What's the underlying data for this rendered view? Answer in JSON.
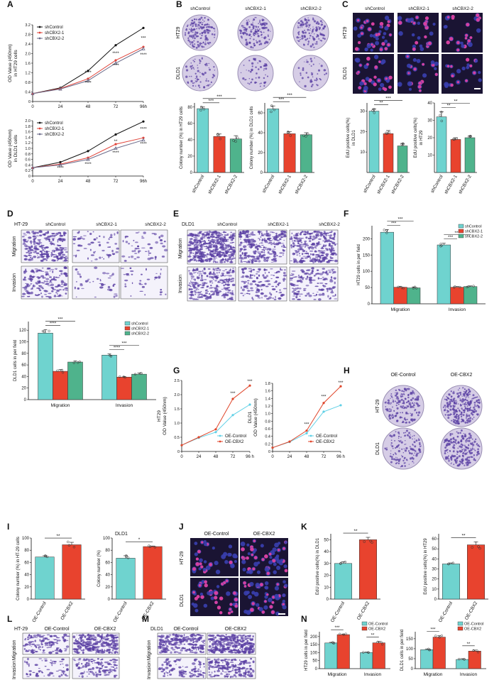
{
  "colors": {
    "control": "#6fd3cf",
    "kd1": "#e8432e",
    "kd2": "#4fb38c",
    "oe_control": "#6fd3cf",
    "oe_cbx2": "#e8432e",
    "bar_edge": "#333333",
    "dish": "#d6cde6",
    "stain": "#5a3fa3",
    "edu_bg": "#1a1433",
    "edu_cell": "#d6409f"
  },
  "panels": {
    "A": {
      "letter": "A"
    },
    "B": {
      "letter": "B",
      "col_headers": [
        "shControl",
        "shCBX2-1",
        "shCBX2-2"
      ],
      "row_labels": [
        "HT29",
        "DLD1"
      ]
    },
    "C": {
      "letter": "C",
      "col_headers": [
        "shControl",
        "shCBX2-1",
        "shCBX2-2"
      ],
      "row_labels": [
        "HT29",
        "DLD1"
      ]
    },
    "D": {
      "letter": "D",
      "cell_line": "HT-29",
      "col_headers": [
        "shControl",
        "shCBX2-1",
        "shCBX2-2"
      ],
      "row_labels": [
        "Migration",
        "Invasion"
      ]
    },
    "E": {
      "letter": "E",
      "cell_line": "DLD1",
      "col_headers": [
        "shControl",
        "shCBX2-1",
        "shCBX2-2"
      ],
      "row_labels": [
        "Migration",
        "Invasion"
      ]
    },
    "F": {
      "letter": "F"
    },
    "G": {
      "letter": "G"
    },
    "H": {
      "letter": "H",
      "col_headers": [
        "OE-Control",
        "OE-CBX2"
      ],
      "row_labels": [
        "HT-29",
        "DLD1"
      ]
    },
    "I": {
      "letter": "I"
    },
    "J": {
      "letter": "J",
      "col_headers": [
        "OE-Control",
        "OE-CBX2"
      ],
      "row_labels": [
        "HT-29",
        "DLD1"
      ]
    },
    "K": {
      "letter": "K"
    },
    "L": {
      "letter": "L",
      "cell_line": "HT-29",
      "col_headers": [
        "OE-Control",
        "OE-CBX2"
      ],
      "row_labels": [
        "Migration",
        "Invasion"
      ]
    },
    "M": {
      "letter": "M",
      "cell_line": "DLD1",
      "col_headers": [
        "OE-Control",
        "OE-CBX2"
      ],
      "row_labels": [
        "Migration",
        "Invasion"
      ]
    },
    "N": {
      "letter": "N"
    }
  },
  "chart_data": [
    {
      "id": "A1",
      "type": "line",
      "ylabel": "OD Value (450nm)\nin HT29 cells",
      "x": [
        0,
        24,
        48,
        72,
        96
      ],
      "xtick_labels": [
        "0",
        "24",
        "48",
        "72",
        "96h"
      ],
      "ylim": [
        0,
        3.2
      ],
      "yticks": [
        0,
        0.4,
        0.8,
        1.2,
        1.6,
        2.0,
        2.4,
        2.8,
        3.2
      ],
      "ytick_labels": [
        "0",
        "0.4",
        "0.8",
        "1.2",
        "1.6",
        "2.0",
        "2.4",
        "2.8",
        "3.2"
      ],
      "legend": "top-left",
      "series": [
        {
          "name": "shControl",
          "values": [
            0.33,
            0.57,
            1.28,
            2.35,
            3.07
          ]
        },
        {
          "name": "shCBX2-1",
          "values": [
            0.33,
            0.54,
            0.95,
            1.72,
            2.28
          ]
        },
        {
          "name": "shCBX2-2",
          "values": [
            0.33,
            0.52,
            0.87,
            1.6,
            2.2
          ]
        }
      ],
      "annotations": [
        {
          "x": 48,
          "y": 1.15,
          "text": "****"
        },
        {
          "x": 48,
          "y": 0.72,
          "text": "****"
        },
        {
          "x": 72,
          "y": 1.95,
          "text": "****"
        },
        {
          "x": 72,
          "y": 1.45,
          "text": "****"
        },
        {
          "x": 96,
          "y": 2.6,
          "text": "***"
        },
        {
          "x": 96,
          "y": 1.9,
          "text": "****"
        }
      ]
    },
    {
      "id": "A2",
      "type": "line",
      "ylabel": "OD Value (450nm)\nin DLD1 cells",
      "x": [
        0,
        24,
        48,
        72,
        96
      ],
      "xtick_labels": [
        "0",
        "24",
        "48",
        "72",
        "96h"
      ],
      "ylim": [
        0,
        2.0
      ],
      "yticks": [
        0,
        0.2,
        0.4,
        0.6,
        0.8,
        1.0,
        1.2,
        1.4,
        1.6,
        1.8,
        2.0
      ],
      "ytick_labels": [
        "0",
        "0.2",
        "0.4",
        "0.6",
        "0.8",
        "1.0",
        "1.2",
        "1.4",
        "1.6",
        "1.8",
        "2.0"
      ],
      "legend": "top-left",
      "series": [
        {
          "name": "shControl",
          "values": [
            0.3,
            0.5,
            0.9,
            1.5,
            1.97
          ]
        },
        {
          "name": "shCBX2-1",
          "values": [
            0.3,
            0.43,
            0.66,
            1.15,
            1.38
          ]
        },
        {
          "name": "shCBX2-2",
          "values": [
            0.3,
            0.4,
            0.6,
            1.0,
            1.3
          ]
        }
      ],
      "annotations": [
        {
          "x": 24,
          "y": 0.24,
          "text": "****"
        },
        {
          "x": 48,
          "y": 0.38,
          "text": "****"
        },
        {
          "x": 72,
          "y": 1.2,
          "text": "**"
        },
        {
          "x": 72,
          "y": 0.8,
          "text": "****"
        },
        {
          "x": 96,
          "y": 1.65,
          "text": "****"
        },
        {
          "x": 96,
          "y": 1.12,
          "text": "****"
        }
      ]
    },
    {
      "id": "B1",
      "type": "bar",
      "ylabel": "Colony number (%) in HT29 cells",
      "categories": [
        "shControl",
        "shCBX2-1",
        "shCBX2-2"
      ],
      "values": [
        78,
        44,
        41
      ],
      "errors": [
        2,
        3,
        4
      ],
      "ylim": [
        0,
        85
      ],
      "yticks": [
        0,
        20,
        40,
        60,
        80
      ],
      "ytick_labels": [
        "0",
        "20",
        "40",
        "60",
        "80"
      ],
      "colors": [
        "#6fd3cf",
        "#e8432e",
        "#4fb38c"
      ],
      "significance": [
        {
          "from": 0,
          "to": 1,
          "text": "***"
        },
        {
          "from": 0,
          "to": 2,
          "text": "***"
        }
      ]
    },
    {
      "id": "B2",
      "type": "bar",
      "ylabel": "Colony number (%) in DLD1 cells",
      "categories": [
        "shControl",
        "shCBX2-1",
        "shCBX2-2"
      ],
      "values": [
        64,
        39,
        38
      ],
      "errors": [
        3,
        2,
        2
      ],
      "ylim": [
        0,
        70
      ],
      "yticks": [
        0,
        20,
        40,
        60
      ],
      "ytick_labels": [
        "0",
        "20",
        "40",
        "60"
      ],
      "colors": [
        "#6fd3cf",
        "#e8432e",
        "#4fb38c"
      ],
      "significance": [
        {
          "from": 0,
          "to": 1,
          "text": "***"
        },
        {
          "from": 0,
          "to": 2,
          "text": "***"
        }
      ]
    },
    {
      "id": "C1",
      "type": "bar",
      "ylabel": "EdU positive cells(%)\nin DLD1",
      "categories": [
        "shControl",
        "shCBX2-1",
        "shCBX2-2"
      ],
      "values": [
        30,
        19,
        13
      ],
      "errors": [
        1,
        1.5,
        1.2
      ],
      "ylim": [
        0,
        34
      ],
      "yticks": [
        10,
        20,
        30
      ],
      "ytick_labels": [
        "10",
        "20",
        "30"
      ],
      "colors": [
        "#6fd3cf",
        "#e8432e",
        "#4fb38c"
      ],
      "significance": [
        {
          "from": 0,
          "to": 1,
          "text": "**"
        },
        {
          "from": 0,
          "to": 2,
          "text": "***"
        }
      ]
    },
    {
      "id": "C2",
      "type": "bar",
      "ylabel": "EdU positive cells(%)\nin HT29",
      "categories": [
        "shControl",
        "shCBX2-1",
        "shCBX2-2"
      ],
      "values": [
        32,
        19,
        20
      ],
      "errors": [
        3,
        1,
        1
      ],
      "ylim": [
        0,
        40
      ],
      "yticks": [
        10,
        20,
        30,
        40
      ],
      "ytick_labels": [
        "10",
        "20",
        "30",
        "40"
      ],
      "colors": [
        "#6fd3cf",
        "#e8432e",
        "#4fb38c"
      ],
      "significance": [
        {
          "from": 0,
          "to": 1,
          "text": "**"
        },
        {
          "from": 0,
          "to": 2,
          "text": "**"
        }
      ]
    },
    {
      "id": "F",
      "type": "bar",
      "ylabel": "HT29 cells in per field",
      "categories": [
        "Migration",
        "Invasion"
      ],
      "ylim": [
        0,
        240
      ],
      "yticks": [
        0,
        50,
        100,
        150,
        200
      ],
      "ytick_labels": [
        "0",
        "50",
        "100",
        "150",
        "200"
      ],
      "legend": "top-right",
      "series": [
        {
          "name": "shControl",
          "values": [
            220,
            181
          ],
          "errors": [
            8,
            5
          ]
        },
        {
          "name": "shCBX2-1",
          "values": [
            51,
            51
          ],
          "errors": [
            3,
            2
          ]
        },
        {
          "name": "shCBX2-2",
          "values": [
            49,
            53
          ],
          "errors": [
            3,
            2
          ]
        }
      ],
      "significance": [
        {
          "group": 0,
          "from": 0,
          "to": 1,
          "text": "***"
        },
        {
          "group": 0,
          "from": 0,
          "to": 2,
          "text": "***"
        },
        {
          "group": 1,
          "from": 0,
          "to": 1,
          "text": "***"
        },
        {
          "group": 1,
          "from": 0,
          "to": 2,
          "text": "***"
        }
      ]
    },
    {
      "id": "E2",
      "type": "bar",
      "ylabel": "DLD1 cells in per field",
      "categories": [
        "Migration",
        "Invasion"
      ],
      "ylim": [
        0,
        135
      ],
      "yticks": [
        0,
        20,
        40,
        60,
        80,
        100,
        120
      ],
      "ytick_labels": [
        "0",
        "20",
        "40",
        "60",
        "80",
        "100",
        "120"
      ],
      "legend": "top-right",
      "series": [
        {
          "name": "shControl",
          "values": [
            115,
            77
          ],
          "errors": [
            6,
            2
          ]
        },
        {
          "name": "shCBX2-1",
          "values": [
            49,
            39
          ],
          "errors": [
            3,
            1
          ]
        },
        {
          "name": "shCBX2-2",
          "values": [
            65,
            44
          ],
          "errors": [
            2,
            2
          ]
        }
      ],
      "significance": [
        {
          "group": 0,
          "from": 0,
          "to": 1,
          "text": "****"
        },
        {
          "group": 0,
          "from": 0,
          "to": 2,
          "text": "***"
        },
        {
          "group": 1,
          "from": 0,
          "to": 1,
          "text": "****"
        },
        {
          "group": 1,
          "from": 0,
          "to": 2,
          "text": "***"
        }
      ]
    },
    {
      "id": "G1",
      "type": "line",
      "ylabel": "HT29\nOD Value (450nm)",
      "x": [
        0,
        24,
        48,
        72,
        96
      ],
      "xtick_labels": [
        "0",
        "24",
        "48",
        "72",
        "96 h"
      ],
      "ylim": [
        0,
        2.5
      ],
      "yticks": [
        0,
        0.5,
        1.0,
        1.5,
        2.0,
        2.5
      ],
      "ytick_labels": [
        "0",
        "0.5",
        "1.0",
        "1.5",
        "2.0",
        "2.5"
      ],
      "legend": "bottom-right",
      "series": [
        {
          "name": "OE-Control",
          "values": [
            0.22,
            0.48,
            0.68,
            1.28,
            1.65
          ]
        },
        {
          "name": "OE-CBX2",
          "values": [
            0.22,
            0.5,
            0.78,
            1.85,
            2.32
          ]
        }
      ],
      "annotations": [
        {
          "x": 72,
          "y": 2.0,
          "text": "***"
        },
        {
          "x": 96,
          "y": 2.42,
          "text": "***"
        }
      ]
    },
    {
      "id": "G2",
      "type": "line",
      "ylabel": "DLD1\nOD Value (450nm)",
      "x": [
        0,
        24,
        48,
        72,
        96
      ],
      "xtick_labels": [
        "0",
        "24",
        "48",
        "72",
        "96 h"
      ],
      "ylim": [
        0,
        1.8
      ],
      "yticks": [
        0,
        0.2,
        0.4,
        0.6,
        0.8,
        1.0,
        1.2,
        1.4,
        1.6,
        1.8
      ],
      "ytick_labels": [
        "0",
        "0.2",
        "0.4",
        "0.6",
        "0.8",
        "1.0",
        "1.2",
        "1.4",
        "1.6",
        "1.8"
      ],
      "legend": "right",
      "series": [
        {
          "name": "OE-Control",
          "values": [
            0.1,
            0.25,
            0.48,
            1.05,
            1.22
          ]
        },
        {
          "name": "OE-CBX2",
          "values": [
            0.1,
            0.26,
            0.55,
            1.28,
            1.72
          ]
        }
      ],
      "annotations": [
        {
          "x": 48,
          "y": 0.68,
          "text": "***"
        },
        {
          "x": 72,
          "y": 1.42,
          "text": "***"
        },
        {
          "x": 96,
          "y": 1.78,
          "text": "***"
        }
      ]
    },
    {
      "id": "I1",
      "type": "bar",
      "ylabel": "Colony number (%) in HT-29 cells",
      "categories": [
        "OE-Control",
        "OE-CBX2"
      ],
      "values": [
        69,
        89
      ],
      "errors": [
        2,
        4
      ],
      "ylim": [
        0,
        100
      ],
      "yticks": [
        0,
        20,
        40,
        60,
        80,
        100
      ],
      "ytick_labels": [
        "0",
        "20",
        "40",
        "60",
        "80",
        "100"
      ],
      "colors": [
        "#6fd3cf",
        "#e8432e"
      ],
      "significance": [
        {
          "from": 0,
          "to": 1,
          "text": "**"
        }
      ]
    },
    {
      "id": "I2",
      "type": "bar",
      "title": "DLD1",
      "ylabel": "Colony number (%)",
      "categories": [
        "OE-Control",
        "OE-CBX2"
      ],
      "values": [
        67,
        86
      ],
      "errors": [
        4,
        1
      ],
      "ylim": [
        0,
        100
      ],
      "yticks": [
        0,
        20,
        40,
        60,
        80,
        100
      ],
      "ytick_labels": [
        "0",
        "20",
        "40",
        "60",
        "80",
        "100"
      ],
      "colors": [
        "#6fd3cf",
        "#e8432e"
      ],
      "significance": [
        {
          "from": 0,
          "to": 1,
          "text": "*"
        }
      ]
    },
    {
      "id": "K1",
      "type": "bar",
      "ylabel": "EdU positive cells(%) in DLD1",
      "categories": [
        "OE-Control",
        "OE-CBX2"
      ],
      "values": [
        30,
        50
      ],
      "errors": [
        1.5,
        2
      ],
      "ylim": [
        0,
        55
      ],
      "yticks": [
        0,
        10,
        20,
        30,
        40,
        50
      ],
      "ytick_labels": [
        "0",
        "10",
        "20",
        "30",
        "40",
        "50"
      ],
      "colors": [
        "#6fd3cf",
        "#e8432e"
      ],
      "significance": [
        {
          "from": 0,
          "to": 1,
          "text": "**"
        }
      ]
    },
    {
      "id": "K2",
      "type": "bar",
      "ylabel": "EdU positive cells(%) in HT29",
      "categories": [
        "OE-Control",
        "OE-CBX2"
      ],
      "values": [
        35,
        54
      ],
      "errors": [
        1,
        3
      ],
      "ylim": [
        0,
        65
      ],
      "yticks": [
        0,
        10,
        20,
        30,
        40,
        50,
        60
      ],
      "ytick_labels": [
        "0",
        "10",
        "20",
        "30",
        "40",
        "50",
        "60"
      ],
      "colors": [
        "#6fd3cf",
        "#e8432e"
      ],
      "significance": [
        {
          "from": 0,
          "to": 1,
          "text": "**"
        }
      ]
    },
    {
      "id": "N1",
      "type": "bar",
      "ylabel": "HT29 cells in per field",
      "categories": [
        "Migration",
        "Invasion"
      ],
      "ylim": [
        0,
        230
      ],
      "yticks": [
        0,
        50,
        100,
        150,
        200
      ],
      "ytick_labels": [
        "0",
        "50",
        "100",
        "150",
        "200"
      ],
      "legend": "top-right",
      "series": [
        {
          "name": "OE-Control",
          "values": [
            160,
            100
          ],
          "errors": [
            4,
            3
          ]
        },
        {
          "name": "OE-CBX2",
          "values": [
            212,
            161
          ],
          "errors": [
            4,
            9
          ]
        }
      ],
      "significance": [
        {
          "group": 0,
          "from": 0,
          "to": 1,
          "text": "***"
        },
        {
          "group": 1,
          "from": 0,
          "to": 1,
          "text": "**"
        }
      ]
    },
    {
      "id": "N2",
      "type": "bar",
      "ylabel": "DLD1 cells in per field",
      "categories": [
        "Migration",
        "Invasion"
      ],
      "ylim": [
        0,
        185
      ],
      "yticks": [
        0,
        50,
        100,
        150
      ],
      "ytick_labels": [
        "0",
        "50",
        "100",
        "150"
      ],
      "legend": "top-right",
      "series": [
        {
          "name": "OE-Control",
          "values": [
            95,
            46
          ],
          "errors": [
            4,
            4
          ]
        },
        {
          "name": "OE-CBX2",
          "values": [
            158,
            88
          ],
          "errors": [
            7,
            5
          ]
        }
      ],
      "significance": [
        {
          "group": 0,
          "from": 0,
          "to": 1,
          "text": "***"
        },
        {
          "group": 1,
          "from": 0,
          "to": 1,
          "text": "**"
        }
      ]
    }
  ]
}
